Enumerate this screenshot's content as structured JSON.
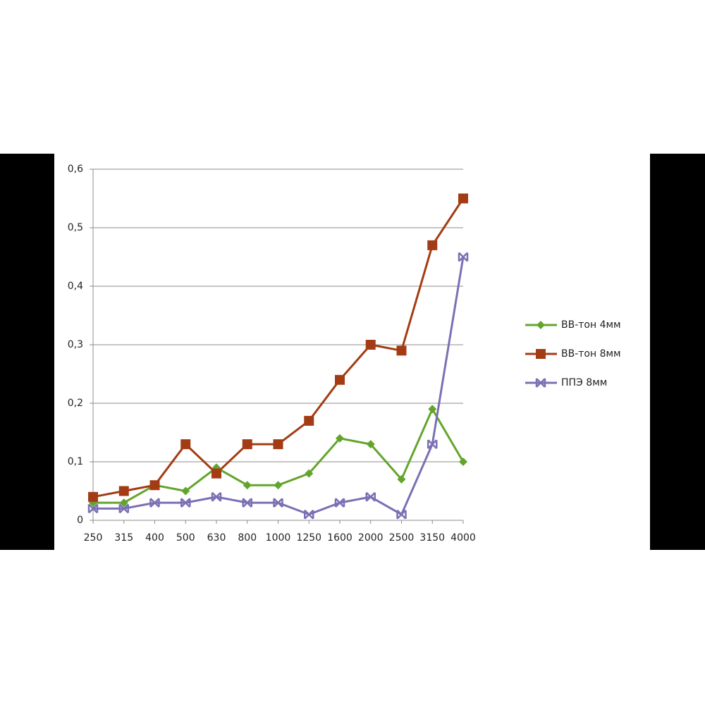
{
  "chart_data": {
    "type": "line",
    "categories": [
      "250",
      "315",
      "400",
      "500",
      "630",
      "800",
      "1000",
      "1250",
      "1600",
      "2000",
      "2500",
      "3150",
      "4000"
    ],
    "series": [
      {
        "name": "ВВ-тон 4мм",
        "color": "#63a52c",
        "marker": "diamond",
        "values": [
          0.03,
          0.03,
          0.06,
          0.05,
          0.09,
          0.06,
          0.06,
          0.08,
          0.14,
          0.13,
          0.07,
          0.19,
          0.1
        ]
      },
      {
        "name": "ВВ-тон 8мм",
        "color": "#a33c14",
        "marker": "square",
        "values": [
          0.04,
          0.05,
          0.06,
          0.13,
          0.08,
          0.13,
          0.13,
          0.17,
          0.24,
          0.3,
          0.29,
          0.47,
          0.55
        ]
      },
      {
        "name": "ППЭ 8мм",
        "color": "#7a70b4",
        "marker": "bowtie",
        "values": [
          0.02,
          0.02,
          0.03,
          0.03,
          0.04,
          0.03,
          0.03,
          0.01,
          0.03,
          0.04,
          0.01,
          0.13,
          0.45
        ]
      }
    ],
    "ylim": [
      0,
      0.6
    ],
    "yticks": [
      0,
      {
        "value": 0.1,
        "label": "0,1"
      },
      {
        "value": 0.2,
        "label": "0,2"
      },
      {
        "value": 0.3,
        "label": "0,3"
      },
      {
        "value": 0.4,
        "label": "0,4"
      },
      {
        "value": 0.5,
        "label": "0,5"
      },
      {
        "value": 0.6,
        "label": "0,6"
      }
    ],
    "grid": true,
    "legend": "right"
  }
}
